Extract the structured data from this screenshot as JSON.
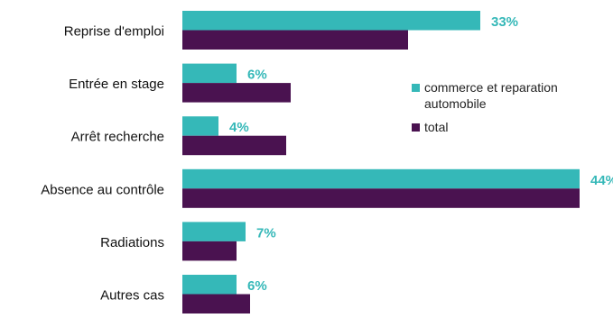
{
  "chart_data": {
    "type": "bar",
    "orientation": "horizontal",
    "categories": [
      "Reprise d'emploi",
      "Entrée en stage",
      "Arrêt recherche",
      "Absence au contrôle",
      "Radiations",
      "Autres cas"
    ],
    "series": [
      {
        "name": "commerce et reparation automobile",
        "values": [
          33,
          6,
          4,
          44,
          7,
          6
        ],
        "color": "#35b8b8",
        "labels": [
          "33%",
          "6%",
          "4%",
          "44%",
          "7%",
          "6%"
        ]
      },
      {
        "name": "total",
        "values": [
          25,
          12,
          11.5,
          44,
          6,
          7.5
        ],
        "color": "#4a1250"
      }
    ],
    "xlim": [
      0,
      50
    ],
    "legend_position": "right",
    "grid": false
  }
}
